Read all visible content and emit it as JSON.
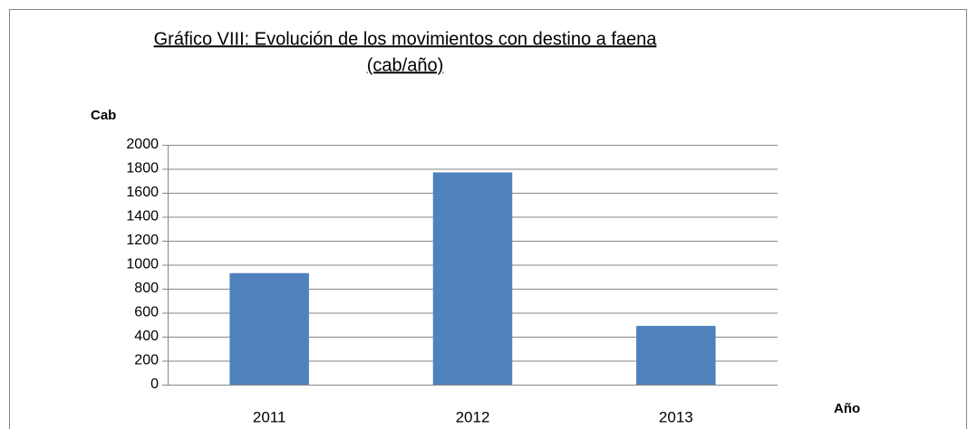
{
  "chart_data": {
    "type": "bar",
    "title": "Gráfico VIII: Evolución de los movimientos con destino a faena",
    "subtitle": "(cab/año)",
    "y_label": "Cab",
    "x_label": "Año",
    "categories": [
      "2011",
      "2012",
      "2013"
    ],
    "values": [
      930,
      1770,
      490
    ],
    "color": "#4f81bd",
    "ylim": [
      0,
      2000
    ],
    "yticks": [
      0,
      200,
      400,
      600,
      800,
      1000,
      1200,
      1400,
      1600,
      1800,
      2000
    ],
    "grid": true
  }
}
